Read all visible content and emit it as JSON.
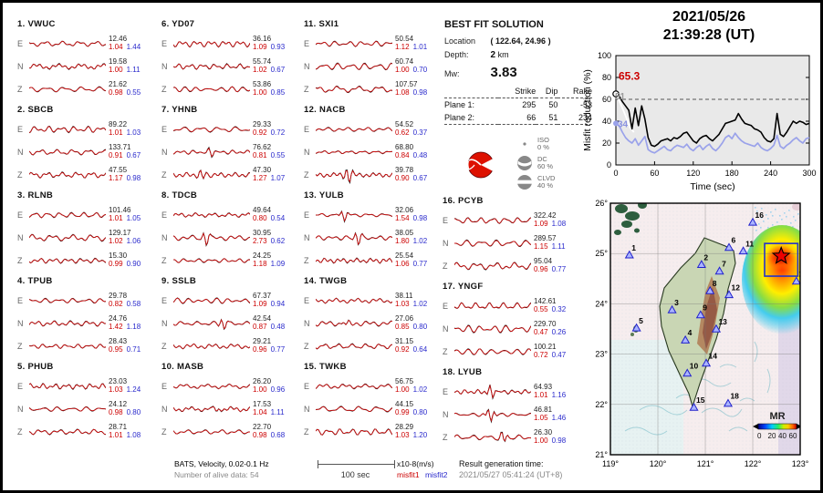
{
  "header": {
    "date": "2021/05/26",
    "time": "21:39:28  (UT)"
  },
  "best_fit": {
    "title": "BEST FIT SOLUTION",
    "location_label": "Location",
    "location_value": "( 122.64,  24.96 )",
    "depth_label": "Depth:",
    "depth_value": "2",
    "depth_unit": "km",
    "mw_label": "Mw:",
    "mw_value": "3.83",
    "plane_table": {
      "headers": [
        "",
        "Strike",
        "Dip",
        "Rake"
      ],
      "rows": [
        {
          "label": "Plane 1:",
          "strike": "295",
          "dip": "50",
          "rake": "-53"
        },
        {
          "label": "Plane 2:",
          "strike": "66",
          "dip": "51",
          "rake": "234"
        }
      ]
    },
    "decomposition": [
      {
        "name": "ISO",
        "pct": "0 %"
      },
      {
        "name": "DC",
        "pct": "60 %"
      },
      {
        "name": "CLVD",
        "pct": "40 %"
      }
    ]
  },
  "stations": [
    {
      "num": "1.",
      "name": "VWUC",
      "components": [
        {
          "ch": "E",
          "amp": "12.46",
          "m1": "1.04",
          "m2": "1.44"
        },
        {
          "ch": "N",
          "amp": "19.58",
          "m1": "1.00",
          "m2": "1.11"
        },
        {
          "ch": "Z",
          "amp": "21.62",
          "m1": "0.98",
          "m2": "0.55"
        }
      ]
    },
    {
      "num": "2.",
      "name": "SBCB",
      "components": [
        {
          "ch": "E",
          "amp": "89.22",
          "m1": "1.01",
          "m2": "1.03"
        },
        {
          "ch": "N",
          "amp": "133.71",
          "m1": "0.91",
          "m2": "0.67"
        },
        {
          "ch": "Z",
          "amp": "47.55",
          "m1": "1.17",
          "m2": "0.98"
        }
      ]
    },
    {
      "num": "3.",
      "name": "RLNB",
      "components": [
        {
          "ch": "E",
          "amp": "101.46",
          "m1": "1.01",
          "m2": "1.05"
        },
        {
          "ch": "N",
          "amp": "129.17",
          "m1": "1.02",
          "m2": "1.06"
        },
        {
          "ch": "Z",
          "amp": "15.30",
          "m1": "0.99",
          "m2": "0.90"
        }
      ]
    },
    {
      "num": "4.",
      "name": "TPUB",
      "components": [
        {
          "ch": "E",
          "amp": "29.78",
          "m1": "0.82",
          "m2": "0.58"
        },
        {
          "ch": "N",
          "amp": "24.76",
          "m1": "1.42",
          "m2": "1.18"
        },
        {
          "ch": "Z",
          "amp": "28.43",
          "m1": "0.95",
          "m2": "0.71"
        }
      ]
    },
    {
      "num": "5.",
      "name": "PHUB",
      "components": [
        {
          "ch": "E",
          "amp": "23.03",
          "m1": "1.03",
          "m2": "1.24"
        },
        {
          "ch": "N",
          "amp": "24.12",
          "m1": "0.98",
          "m2": "0.80"
        },
        {
          "ch": "Z",
          "amp": "28.71",
          "m1": "1.01",
          "m2": "1.08"
        }
      ]
    },
    {
      "num": "6.",
      "name": "YD07",
      "components": [
        {
          "ch": "E",
          "amp": "36.16",
          "m1": "1.09",
          "m2": "0.93"
        },
        {
          "ch": "N",
          "amp": "55.74",
          "m1": "1.02",
          "m2": "0.67"
        },
        {
          "ch": "Z",
          "amp": "53.86",
          "m1": "1.00",
          "m2": "0.85"
        }
      ]
    },
    {
      "num": "7.",
      "name": "YHNB",
      "components": [
        {
          "ch": "E",
          "amp": "29.33",
          "m1": "0.92",
          "m2": "0.72"
        },
        {
          "ch": "N",
          "amp": "76.62",
          "m1": "0.81",
          "m2": "0.55"
        },
        {
          "ch": "Z",
          "amp": "47.30",
          "m1": "1.27",
          "m2": "1.07"
        }
      ]
    },
    {
      "num": "8.",
      "name": "TDCB",
      "components": [
        {
          "ch": "E",
          "amp": "49.64",
          "m1": "0.80",
          "m2": "0.54"
        },
        {
          "ch": "N",
          "amp": "30.95",
          "m1": "2.73",
          "m2": "0.62"
        },
        {
          "ch": "Z",
          "amp": "24.25",
          "m1": "1.18",
          "m2": "1.09"
        }
      ]
    },
    {
      "num": "9.",
      "name": "SSLB",
      "components": [
        {
          "ch": "E",
          "amp": "67.37",
          "m1": "1.09",
          "m2": "0.94"
        },
        {
          "ch": "N",
          "amp": "42.54",
          "m1": "0.87",
          "m2": "0.48"
        },
        {
          "ch": "Z",
          "amp": "29.21",
          "m1": "0.96",
          "m2": "0.77"
        }
      ]
    },
    {
      "num": "10.",
      "name": "MASB",
      "components": [
        {
          "ch": "E",
          "amp": "26.20",
          "m1": "1.00",
          "m2": "0.96"
        },
        {
          "ch": "N",
          "amp": "17.53",
          "m1": "1.04",
          "m2": "1.11"
        },
        {
          "ch": "Z",
          "amp": "22.70",
          "m1": "0.98",
          "m2": "0.68"
        }
      ]
    },
    {
      "num": "11.",
      "name": "SXI1",
      "components": [
        {
          "ch": "E",
          "amp": "50.54",
          "m1": "1.12",
          "m2": "1.01"
        },
        {
          "ch": "N",
          "amp": "60.74",
          "m1": "1.00",
          "m2": "0.70"
        },
        {
          "ch": "Z",
          "amp": "107.57",
          "m1": "1.08",
          "m2": "0.98"
        }
      ]
    },
    {
      "num": "12.",
      "name": "NACB",
      "components": [
        {
          "ch": "E",
          "amp": "54.52",
          "m1": "0.62",
          "m2": "0.37"
        },
        {
          "ch": "N",
          "amp": "68.80",
          "m1": "0.84",
          "m2": "0.48"
        },
        {
          "ch": "Z",
          "amp": "39.78",
          "m1": "0.90",
          "m2": "0.67"
        }
      ]
    },
    {
      "num": "13.",
      "name": "YULB",
      "components": [
        {
          "ch": "E",
          "amp": "32.06",
          "m1": "1.54",
          "m2": "0.98"
        },
        {
          "ch": "N",
          "amp": "38.05",
          "m1": "1.80",
          "m2": "1.02"
        },
        {
          "ch": "Z",
          "amp": "25.54",
          "m1": "1.06",
          "m2": "0.77"
        }
      ]
    },
    {
      "num": "14.",
      "name": "TWGB",
      "components": [
        {
          "ch": "E",
          "amp": "38.11",
          "m1": "1.03",
          "m2": "1.02"
        },
        {
          "ch": "N",
          "amp": "27.06",
          "m1": "0.85",
          "m2": "0.80"
        },
        {
          "ch": "Z",
          "amp": "31.15",
          "m1": "0.92",
          "m2": "0.64"
        }
      ]
    },
    {
      "num": "15.",
      "name": "TWKB",
      "components": [
        {
          "ch": "E",
          "amp": "56.75",
          "m1": "1.00",
          "m2": "1.02"
        },
        {
          "ch": "N",
          "amp": "44.15",
          "m1": "0.99",
          "m2": "0.80"
        },
        {
          "ch": "Z",
          "amp": "28.29",
          "m1": "1.03",
          "m2": "1.20"
        }
      ]
    },
    {
      "num": "16.",
      "name": "PCYB",
      "components": [
        {
          "ch": "E",
          "amp": "322.42",
          "m1": "1.09",
          "m2": "1.08"
        },
        {
          "ch": "N",
          "amp": "289.57",
          "m1": "1.15",
          "m2": "1.11"
        },
        {
          "ch": "Z",
          "amp": "95.04",
          "m1": "0.96",
          "m2": "0.77"
        }
      ]
    },
    {
      "num": "17.",
      "name": "YNGF",
      "components": [
        {
          "ch": "E",
          "amp": "142.61",
          "m1": "0.55",
          "m2": "0.32"
        },
        {
          "ch": "N",
          "amp": "229.70",
          "m1": "0.47",
          "m2": "0.26"
        },
        {
          "ch": "Z",
          "amp": "100.21",
          "m1": "0.72",
          "m2": "0.47"
        }
      ]
    },
    {
      "num": "18.",
      "name": "LYUB",
      "components": [
        {
          "ch": "E",
          "amp": "64.93",
          "m1": "1.01",
          "m2": "1.16"
        },
        {
          "ch": "N",
          "amp": "46.81",
          "m1": "1.05",
          "m2": "1.46"
        },
        {
          "ch": "Z",
          "amp": "26.30",
          "m1": "1.00",
          "m2": "0.98"
        }
      ]
    }
  ],
  "footer": {
    "line1": "BATS, Velocity, 0.02-0.1 Hz",
    "line2": "Number of alive data: 54",
    "scale_label": "100 sec",
    "unit_label": "x10-8(m/s)",
    "misfit1_label": "misfit1",
    "misfit2_label": "misfit2",
    "result_label": "Result generation time:",
    "result_value": "2021/05/27 05:41:24 (UT+8)"
  },
  "misfit_plot": {
    "ylabel": "Misfit reduction (%)",
    "xlabel": "Time (sec)",
    "xticks": [
      0,
      60,
      120,
      180,
      240,
      300
    ],
    "yticks": [
      0,
      20,
      40,
      60,
      80,
      100
    ],
    "label_red": "65.3",
    "label_gray": "51",
    "label_blue": "34",
    "dashed_reference_y": 60,
    "white_trace": [
      [
        0,
        65
      ],
      [
        8,
        55
      ],
      [
        15,
        45
      ],
      [
        22,
        34
      ],
      [
        28,
        30
      ]
    ]
  },
  "chart_data": {
    "type": "line",
    "title": "Misfit reduction (%) vs Time (sec)",
    "xlabel": "Time (sec)",
    "ylabel": "Misfit reduction (%)",
    "xlim": [
      0,
      300
    ],
    "ylim": [
      0,
      100
    ],
    "legend_position": "none",
    "grid": false,
    "x": [
      0,
      5,
      10,
      15,
      20,
      25,
      30,
      35,
      40,
      45,
      50,
      55,
      60,
      65,
      70,
      75,
      80,
      85,
      90,
      95,
      100,
      105,
      110,
      115,
      120,
      125,
      130,
      135,
      140,
      145,
      150,
      155,
      160,
      165,
      170,
      175,
      180,
      185,
      190,
      195,
      200,
      205,
      210,
      215,
      220,
      225,
      230,
      235,
      240,
      245,
      250,
      255,
      260,
      265,
      270,
      275,
      280,
      285,
      290,
      295,
      300
    ],
    "series": [
      {
        "name": "misfit1",
        "color": "#000000",
        "values": [
          65,
          63,
          58,
          54,
          50,
          33,
          52,
          36,
          54,
          42,
          25,
          18,
          17,
          19,
          22,
          23,
          24,
          22,
          25,
          24,
          26,
          29,
          30,
          26,
          22,
          20,
          24,
          26,
          27,
          24,
          22,
          25,
          28,
          33,
          38,
          39,
          40,
          41,
          47,
          42,
          38,
          37,
          36,
          33,
          32,
          30,
          25,
          22,
          21,
          24,
          47,
          28,
          26,
          30,
          35,
          40,
          38,
          40,
          39,
          37,
          38
        ]
      },
      {
        "name": "misfit2",
        "color": "#9aa2ea",
        "values": [
          38,
          36,
          30,
          25,
          22,
          20,
          24,
          18,
          22,
          26,
          14,
          12,
          11,
          13,
          15,
          17,
          14,
          13,
          16,
          18,
          17,
          16,
          19,
          15,
          13,
          16,
          18,
          14,
          17,
          19,
          15,
          13,
          16,
          20,
          25,
          27,
          24,
          29,
          25,
          22,
          20,
          19,
          18,
          17,
          20,
          16,
          14,
          13,
          15,
          18,
          27,
          17,
          15,
          18,
          20,
          23,
          25,
          22,
          20,
          24,
          25
        ]
      }
    ],
    "annotations": [
      {
        "text": "65.3",
        "color": "#cc0000"
      },
      {
        "text": "51",
        "color": "#999999"
      },
      {
        "text": "34",
        "color": "#8a92e0"
      }
    ]
  },
  "map": {
    "lat_ticks": [
      "26°",
      "25°",
      "24°",
      "23°",
      "22°",
      "21°"
    ],
    "lon_ticks": [
      "119°",
      "120°",
      "121°",
      "122°",
      "123°"
    ],
    "legend_title": "MR",
    "legend_tick_labels": [
      "0",
      "20",
      "40",
      "60"
    ],
    "epicenter": {
      "lon": 122.6,
      "lat": 24.95
    },
    "stations": [
      {
        "id": "1",
        "lon": 119.4,
        "lat": 24.97
      },
      {
        "id": "2",
        "lon": 120.92,
        "lat": 24.78
      },
      {
        "id": "3",
        "lon": 120.3,
        "lat": 23.88
      },
      {
        "id": "4",
        "lon": 120.58,
        "lat": 23.28
      },
      {
        "id": "5",
        "lon": 119.55,
        "lat": 23.52
      },
      {
        "id": "6",
        "lon": 121.5,
        "lat": 25.12
      },
      {
        "id": "7",
        "lon": 121.3,
        "lat": 24.65
      },
      {
        "id": "8",
        "lon": 121.1,
        "lat": 24.26
      },
      {
        "id": "9",
        "lon": 120.9,
        "lat": 23.78
      },
      {
        "id": "10",
        "lon": 120.62,
        "lat": 22.62
      },
      {
        "id": "11",
        "lon": 121.8,
        "lat": 25.05
      },
      {
        "id": "12",
        "lon": 121.5,
        "lat": 24.18
      },
      {
        "id": "13",
        "lon": 121.23,
        "lat": 23.5
      },
      {
        "id": "14",
        "lon": 121.02,
        "lat": 22.82
      },
      {
        "id": "15",
        "lon": 120.76,
        "lat": 21.94
      },
      {
        "id": "16",
        "lon": 122.0,
        "lat": 25.62
      },
      {
        "id": "17",
        "lon": 122.92,
        "lat": 24.45
      },
      {
        "id": "18",
        "lon": 121.48,
        "lat": 22.02
      }
    ]
  },
  "colors": {
    "misfit1": "#cc0000",
    "misfit2": "#2a2acc",
    "series_black": "#000000",
    "series_periwinkle": "#9aa2ea",
    "beachball_red": "#dd1100",
    "station_triangle": "#aab4ff"
  }
}
